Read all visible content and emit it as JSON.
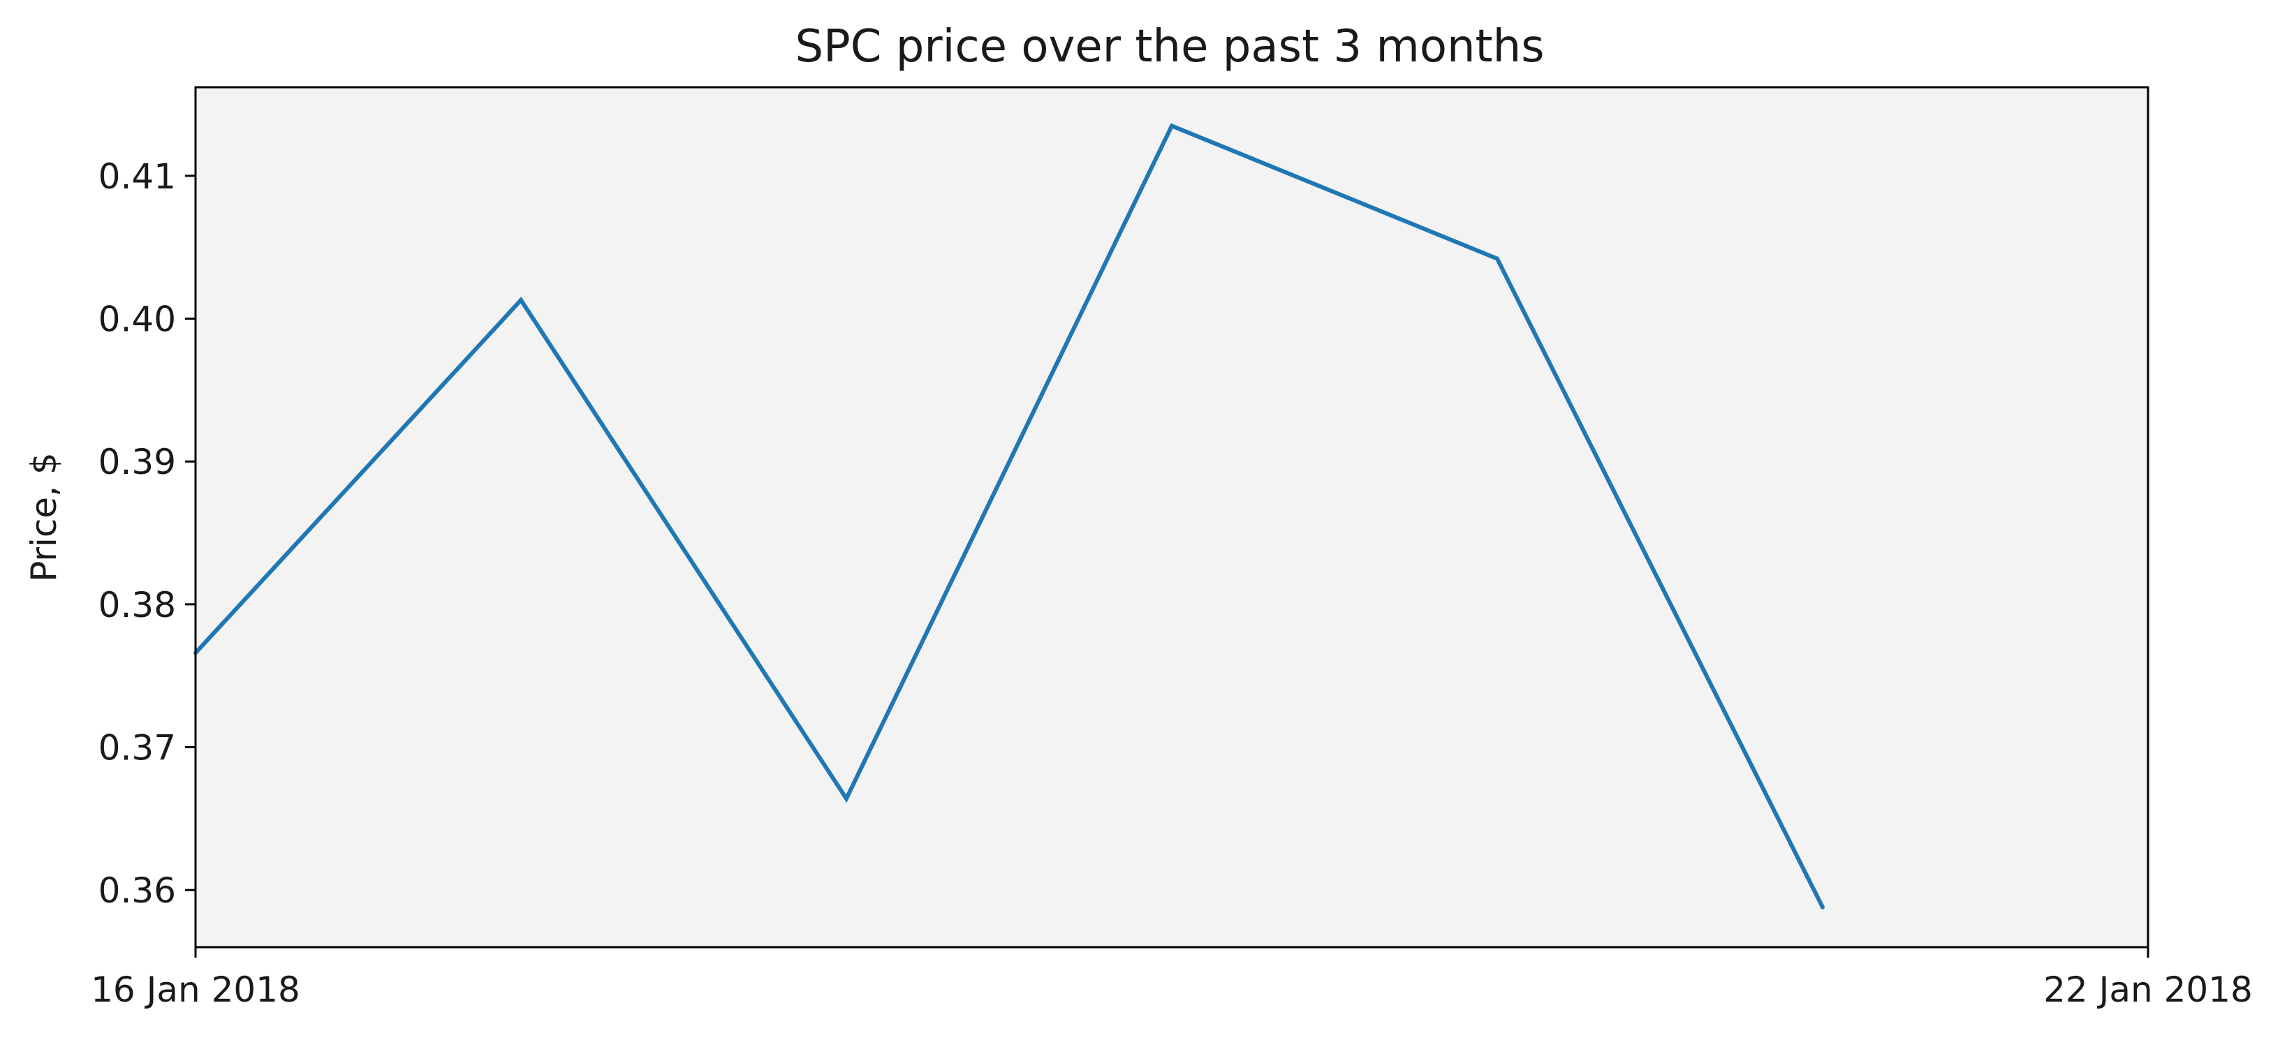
{
  "chart_data": {
    "type": "line",
    "title": "SPC price over the past 3 months",
    "xlabel": "",
    "ylabel": "Price, $",
    "x": [
      "2018-01-16",
      "2018-01-17",
      "2018-01-18",
      "2018-01-19",
      "2018-01-20",
      "2018-01-21"
    ],
    "x_tick_labels": [
      "16 Jan 2018",
      "22 Jan 2018"
    ],
    "x_range": [
      "2018-01-16",
      "2018-01-22"
    ],
    "y_ticks": [
      "0.36",
      "0.37",
      "0.38",
      "0.39",
      "0.40",
      "0.41"
    ],
    "ylim": [
      0.356,
      0.4162
    ],
    "series": [
      {
        "values": [
          0.3766,
          0.4013,
          0.3664,
          0.4135,
          0.4042,
          0.3588
        ]
      }
    ],
    "grid": false,
    "legend": "none"
  },
  "colors": {
    "line": "#1f77b4",
    "plot_background": "#f3f3f3",
    "axes": "#000000"
  }
}
